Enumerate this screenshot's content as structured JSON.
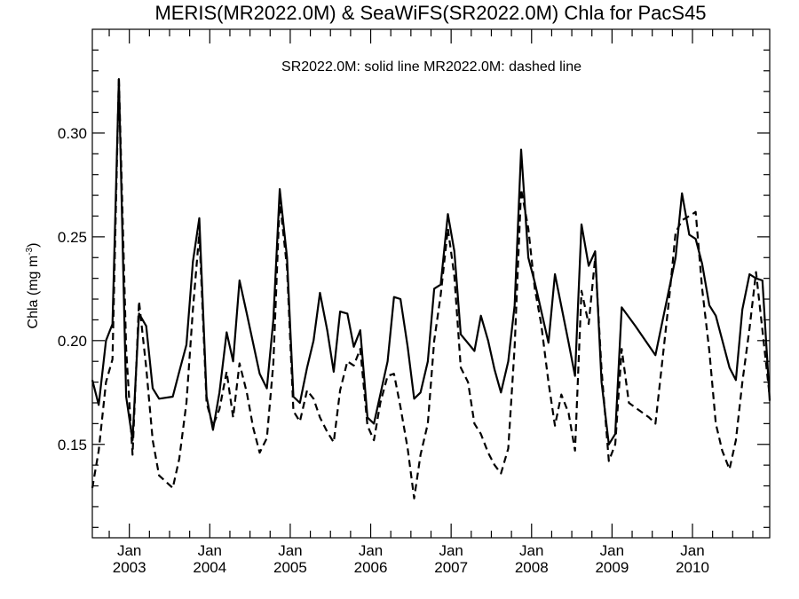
{
  "chart_data": {
    "type": "line",
    "title": "MERIS(MR2022.0M) & SeaWiFS(SR2022.0M)  Chla for PacS45",
    "annotation": "SR2022.0M: solid line   MR2022.0M: dashed line",
    "ylabel": "Chla (mg m",
    "ylabel_sup": "-3",
    "ylabel_close": ")",
    "xlim": [
      2002.54,
      2010.96
    ],
    "ylim": [
      0.105,
      0.35
    ],
    "yticks": [
      {
        "value": 0.15,
        "label": "0.15"
      },
      {
        "value": 0.2,
        "label": "0.20"
      },
      {
        "value": 0.25,
        "label": "0.25"
      },
      {
        "value": 0.3,
        "label": "0.30"
      }
    ],
    "xticks": [
      {
        "value": 2003,
        "month": "Jan",
        "year": "2003"
      },
      {
        "value": 2004,
        "month": "Jan",
        "year": "2004"
      },
      {
        "value": 2005,
        "month": "Jan",
        "year": "2005"
      },
      {
        "value": 2006,
        "month": "Jan",
        "year": "2006"
      },
      {
        "value": 2007,
        "month": "Jan",
        "year": "2007"
      },
      {
        "value": 2008,
        "month": "Jan",
        "year": "2008"
      },
      {
        "value": 2009,
        "month": "Jan",
        "year": "2009"
      },
      {
        "value": 2010,
        "month": "Jan",
        "year": "2010"
      }
    ],
    "series": [
      {
        "style": "solid",
        "points": [
          [
            2002.54,
            0.181
          ],
          [
            2002.62,
            0.169
          ],
          [
            2002.71,
            0.2
          ],
          [
            2002.79,
            0.208
          ],
          [
            2002.87,
            0.326
          ],
          [
            2002.96,
            0.173
          ],
          [
            2003.04,
            0.152
          ],
          [
            2003.12,
            0.213
          ],
          [
            2003.21,
            0.207
          ],
          [
            2003.29,
            0.177
          ],
          [
            2003.37,
            0.172
          ],
          [
            2003.54,
            0.173
          ],
          [
            2003.62,
            0.185
          ],
          [
            2003.71,
            0.198
          ],
          [
            2003.79,
            0.238
          ],
          [
            2003.87,
            0.259
          ],
          [
            2003.96,
            0.173
          ],
          [
            2004.04,
            0.157
          ],
          [
            2004.12,
            0.175
          ],
          [
            2004.21,
            0.204
          ],
          [
            2004.29,
            0.19
          ],
          [
            2004.37,
            0.229
          ],
          [
            2004.46,
            0.213
          ],
          [
            2004.62,
            0.184
          ],
          [
            2004.71,
            0.177
          ],
          [
            2004.79,
            0.21
          ],
          [
            2004.87,
            0.273
          ],
          [
            2004.96,
            0.24
          ],
          [
            2005.04,
            0.173
          ],
          [
            2005.12,
            0.17
          ],
          [
            2005.21,
            0.187
          ],
          [
            2005.29,
            0.2
          ],
          [
            2005.37,
            0.223
          ],
          [
            2005.46,
            0.205
          ],
          [
            2005.54,
            0.185
          ],
          [
            2005.62,
            0.214
          ],
          [
            2005.71,
            0.213
          ],
          [
            2005.79,
            0.197
          ],
          [
            2005.87,
            0.205
          ],
          [
            2005.96,
            0.163
          ],
          [
            2006.04,
            0.16
          ],
          [
            2006.21,
            0.19
          ],
          [
            2006.29,
            0.221
          ],
          [
            2006.37,
            0.22
          ],
          [
            2006.46,
            0.197
          ],
          [
            2006.54,
            0.172
          ],
          [
            2006.62,
            0.175
          ],
          [
            2006.71,
            0.19
          ],
          [
            2006.79,
            0.225
          ],
          [
            2006.87,
            0.227
          ],
          [
            2006.96,
            0.261
          ],
          [
            2007.04,
            0.243
          ],
          [
            2007.12,
            0.203
          ],
          [
            2007.29,
            0.195
          ],
          [
            2007.37,
            0.212
          ],
          [
            2007.46,
            0.2
          ],
          [
            2007.54,
            0.186
          ],
          [
            2007.62,
            0.175
          ],
          [
            2007.71,
            0.19
          ],
          [
            2007.79,
            0.217
          ],
          [
            2007.87,
            0.292
          ],
          [
            2007.96,
            0.24
          ],
          [
            2008.04,
            0.228
          ],
          [
            2008.21,
            0.199
          ],
          [
            2008.29,
            0.232
          ],
          [
            2008.46,
            0.199
          ],
          [
            2008.54,
            0.183
          ],
          [
            2008.62,
            0.256
          ],
          [
            2008.71,
            0.236
          ],
          [
            2008.79,
            0.243
          ],
          [
            2008.87,
            0.18
          ],
          [
            2008.96,
            0.15
          ],
          [
            2009.04,
            0.155
          ],
          [
            2009.12,
            0.216
          ],
          [
            2009.29,
            0.207
          ],
          [
            2009.54,
            0.193
          ],
          [
            2009.79,
            0.24
          ],
          [
            2009.87,
            0.271
          ],
          [
            2009.96,
            0.251
          ],
          [
            2010.04,
            0.249
          ],
          [
            2010.12,
            0.237
          ],
          [
            2010.21,
            0.217
          ],
          [
            2010.29,
            0.212
          ],
          [
            2010.46,
            0.187
          ],
          [
            2010.54,
            0.181
          ],
          [
            2010.62,
            0.215
          ],
          [
            2010.71,
            0.232
          ],
          [
            2010.79,
            0.23
          ],
          [
            2010.87,
            0.229
          ],
          [
            2010.96,
            0.171
          ]
        ]
      },
      {
        "style": "dashed",
        "points": [
          [
            2002.54,
            0.129
          ],
          [
            2002.62,
            0.147
          ],
          [
            2002.71,
            0.18
          ],
          [
            2002.79,
            0.191
          ],
          [
            2002.87,
            0.327
          ],
          [
            2002.96,
            0.196
          ],
          [
            2003.04,
            0.145
          ],
          [
            2003.12,
            0.219
          ],
          [
            2003.21,
            0.187
          ],
          [
            2003.29,
            0.152
          ],
          [
            2003.37,
            0.135
          ],
          [
            2003.54,
            0.129
          ],
          [
            2003.62,
            0.143
          ],
          [
            2003.71,
            0.17
          ],
          [
            2003.79,
            0.215
          ],
          [
            2003.87,
            0.252
          ],
          [
            2003.96,
            0.17
          ],
          [
            2004.04,
            0.159
          ],
          [
            2004.12,
            0.167
          ],
          [
            2004.21,
            0.185
          ],
          [
            2004.29,
            0.163
          ],
          [
            2004.37,
            0.189
          ],
          [
            2004.46,
            0.175
          ],
          [
            2004.54,
            0.158
          ],
          [
            2004.62,
            0.146
          ],
          [
            2004.71,
            0.153
          ],
          [
            2004.79,
            0.189
          ],
          [
            2004.87,
            0.268
          ],
          [
            2004.96,
            0.235
          ],
          [
            2005.04,
            0.166
          ],
          [
            2005.12,
            0.161
          ],
          [
            2005.21,
            0.176
          ],
          [
            2005.29,
            0.172
          ],
          [
            2005.37,
            0.163
          ],
          [
            2005.46,
            0.156
          ],
          [
            2005.54,
            0.151
          ],
          [
            2005.62,
            0.176
          ],
          [
            2005.71,
            0.19
          ],
          [
            2005.79,
            0.188
          ],
          [
            2005.87,
            0.196
          ],
          [
            2005.96,
            0.159
          ],
          [
            2006.04,
            0.152
          ],
          [
            2006.12,
            0.17
          ],
          [
            2006.21,
            0.183
          ],
          [
            2006.29,
            0.184
          ],
          [
            2006.37,
            0.168
          ],
          [
            2006.46,
            0.148
          ],
          [
            2006.54,
            0.124
          ],
          [
            2006.62,
            0.145
          ],
          [
            2006.71,
            0.16
          ],
          [
            2006.79,
            0.2
          ],
          [
            2006.87,
            0.222
          ],
          [
            2006.96,
            0.254
          ],
          [
            2007.04,
            0.231
          ],
          [
            2007.12,
            0.187
          ],
          [
            2007.21,
            0.18
          ],
          [
            2007.29,
            0.16
          ],
          [
            2007.37,
            0.155
          ],
          [
            2007.46,
            0.146
          ],
          [
            2007.54,
            0.14
          ],
          [
            2007.62,
            0.136
          ],
          [
            2007.71,
            0.148
          ],
          [
            2007.79,
            0.197
          ],
          [
            2007.87,
            0.273
          ],
          [
            2007.96,
            0.254
          ],
          [
            2008.04,
            0.225
          ],
          [
            2008.12,
            0.208
          ],
          [
            2008.21,
            0.18
          ],
          [
            2008.29,
            0.159
          ],
          [
            2008.37,
            0.174
          ],
          [
            2008.46,
            0.165
          ],
          [
            2008.54,
            0.147
          ],
          [
            2008.62,
            0.224
          ],
          [
            2008.71,
            0.208
          ],
          [
            2008.79,
            0.24
          ],
          [
            2008.87,
            0.186
          ],
          [
            2008.96,
            0.142
          ],
          [
            2009.04,
            0.15
          ],
          [
            2009.12,
            0.196
          ],
          [
            2009.21,
            0.17
          ],
          [
            2009.46,
            0.163
          ],
          [
            2009.54,
            0.16
          ],
          [
            2009.71,
            0.22
          ],
          [
            2009.79,
            0.252
          ],
          [
            2009.87,
            0.258
          ],
          [
            2009.96,
            0.26
          ],
          [
            2010.04,
            0.262
          ],
          [
            2010.12,
            0.225
          ],
          [
            2010.21,
            0.195
          ],
          [
            2010.29,
            0.16
          ],
          [
            2010.37,
            0.147
          ],
          [
            2010.46,
            0.138
          ],
          [
            2010.54,
            0.152
          ],
          [
            2010.62,
            0.18
          ],
          [
            2010.71,
            0.206
          ],
          [
            2010.79,
            0.233
          ],
          [
            2010.87,
            0.205
          ],
          [
            2010.96,
            0.173
          ]
        ]
      }
    ]
  }
}
